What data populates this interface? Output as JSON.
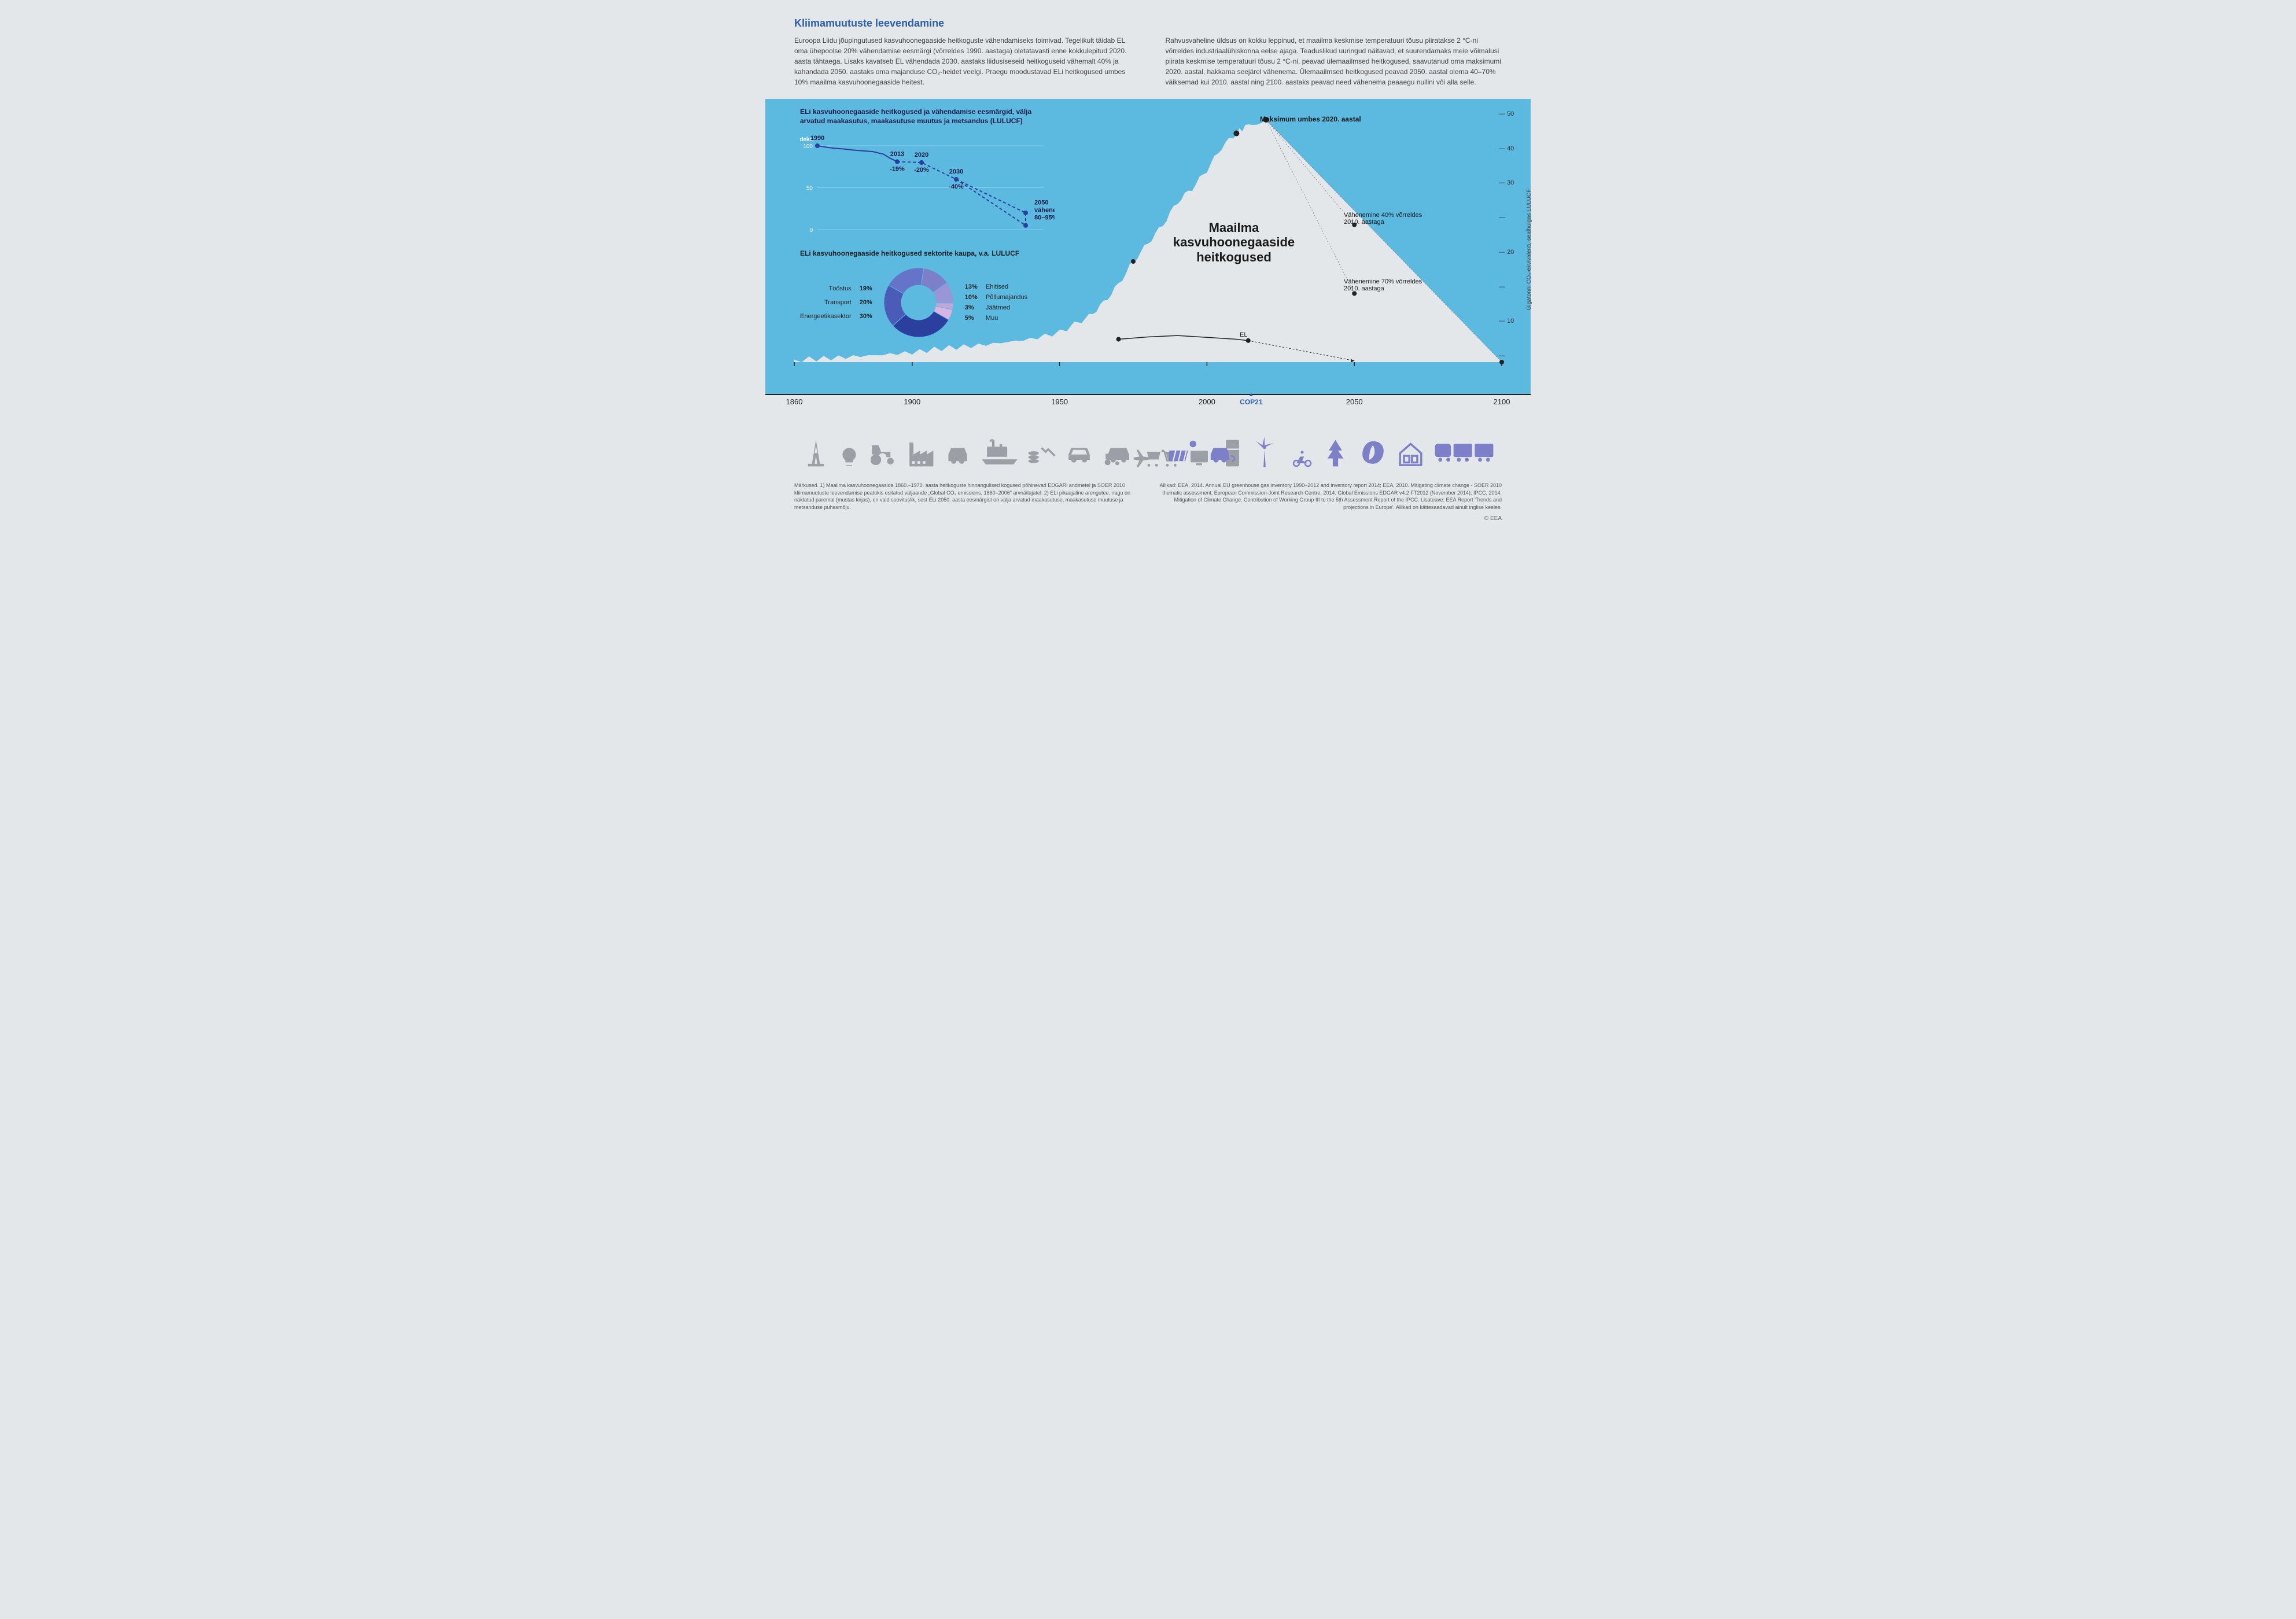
{
  "title": "Kliimamuutuste leevendamine",
  "intro_left": "Euroopa Liidu jõupingutused kasvuhoonegaaside heitkoguste vähendamiseks toimivad. Tegelikult täidab EL oma ühepoolse 20% vähendamise eesmärgi (võrreldes 1990. aastaga) oletatavasti enne kokkulepitud 2020. aasta tähtaega. Lisaks kavatseb EL vähendada 2030. aastaks liidusiseseid heitkoguseid vähemalt 40% ja kahandada 2050. aastaks oma majanduse CO₂-heidet veelgi. Praegu moodustavad ELi heitkogused umbes 10% maailma kasvuhoonegaaside heitest.",
  "intro_right": "Rahvusvaheline üldsus on kokku leppinud, et maailma keskmise temperatuuri tõusu piiratakse 2 °C-ni võrreldes industriaalühiskonna eelse ajaga. Teaduslikud uuringud näitavad, et suurendamaks meie võimalusi piirata keskmise temperatuuri tõusu 2 °C-ni, peavad ülemaailmsed heitkogused, saavutanud oma maksimumi 2020. aastal, hakkama seejärel vähenema. Ülemaailmsed heitkogused peavad 2050. aastal olema 40–70% väiksemad kui 2010. aastal ning 2100. aastaks peavad need vähenema peaaegu nullini või alla selle.",
  "eu_chart": {
    "title": "ELi kasvuhoonegaaside heitkogused ja vähendamise eesmärgid, välja arvatud maakasutus, maakasutuse muutus ja metsandus (LULUCF)",
    "indeks_label": "Indeks",
    "ylim": [
      0,
      100
    ],
    "yticks": [
      0,
      50,
      100
    ],
    "grid_color": "#8fd0ea",
    "line_color": "#2b3f9e",
    "points": [
      {
        "year": 1990,
        "value": 100,
        "label": "1990"
      },
      {
        "year": 2013,
        "value": 81,
        "label": "2013",
        "sublabel": "-19%"
      },
      {
        "year": 2020,
        "value": 80,
        "label": "2020",
        "sublabel": "-20%",
        "dashed_from": true
      },
      {
        "year": 2030,
        "value": 60,
        "label": "2030",
        "sublabel": "-40%"
      },
      {
        "year": 2050,
        "value_range": [
          5,
          20
        ],
        "label": "2050",
        "sublabel": "vähenemine 80–95%"
      }
    ]
  },
  "donut": {
    "title": "ELi kasvuhoonegaaside heitkogused sektorite kaupa, v.a. LULUCF",
    "inner_color": "#5cb9e0",
    "sectors": [
      {
        "label": "Energeetikasektor",
        "pct": 30,
        "color": "#2b3f9e"
      },
      {
        "label": "Transport",
        "pct": 20,
        "color": "#4a5cb8"
      },
      {
        "label": "Tööstus",
        "pct": 19,
        "color": "#6574c9"
      },
      {
        "label": "Ehitised",
        "pct": 13,
        "color": "#7d7fc9"
      },
      {
        "label": "Põllumajandus",
        "pct": 10,
        "color": "#9896d6"
      },
      {
        "label": "Jäätmed",
        "pct": 3,
        "color": "#c4a5d8"
      },
      {
        "label": "Muu",
        "pct": 5,
        "color": "#d8b5e0"
      }
    ]
  },
  "world_chart": {
    "title": "Maailma kasvuhoonegaaside heitkogused",
    "background": "#5cb9e0",
    "mountain_fill": "#e4e7ea",
    "xlim": [
      1860,
      2100
    ],
    "ylim": [
      0,
      55
    ],
    "yticks": [
      10,
      20,
      30,
      40,
      50
    ],
    "axis_label": "Gigatonni CO₂-ekvivalenti, sealhulgas LULUCF",
    "series_world": [
      {
        "x": 1860,
        "y": 0.5
      },
      {
        "x": 1870,
        "y": 0.8
      },
      {
        "x": 1880,
        "y": 1.2
      },
      {
        "x": 1890,
        "y": 1.6
      },
      {
        "x": 1900,
        "y": 2.1
      },
      {
        "x": 1910,
        "y": 3.0
      },
      {
        "x": 1920,
        "y": 3.5
      },
      {
        "x": 1930,
        "y": 4.2
      },
      {
        "x": 1940,
        "y": 5.0
      },
      {
        "x": 1950,
        "y": 6.5
      },
      {
        "x": 1960,
        "y": 10
      },
      {
        "x": 1965,
        "y": 13
      },
      {
        "x": 1970,
        "y": 17
      },
      {
        "x": 1975,
        "y": 22
      },
      {
        "x": 1980,
        "y": 26
      },
      {
        "x": 1985,
        "y": 30
      },
      {
        "x": 1990,
        "y": 35
      },
      {
        "x": 1995,
        "y": 38
      },
      {
        "x": 2000,
        "y": 42
      },
      {
        "x": 2005,
        "y": 47
      },
      {
        "x": 2010,
        "y": 50
      },
      {
        "x": 2014,
        "y": 52
      },
      {
        "x": 2020,
        "y": 53
      }
    ],
    "series_eu": [
      {
        "x": 1970,
        "y": 5.0
      },
      {
        "x": 1980,
        "y": 5.5
      },
      {
        "x": 1990,
        "y": 5.8
      },
      {
        "x": 2000,
        "y": 5.4
      },
      {
        "x": 2010,
        "y": 5.0
      },
      {
        "x": 2014,
        "y": 4.7
      }
    ],
    "eu_label": "EL",
    "projections": [
      {
        "target_x": 2050,
        "target_y": 30,
        "label": "Vähenemine 40% võrreldes 2010. aastaga"
      },
      {
        "target_x": 2050,
        "target_y": 15,
        "label": "Vähenemine 70% võrreldes 2010. aastaga"
      },
      {
        "target_x": 2100,
        "target_y": 0
      }
    ],
    "peak_label": "Maksimum umbes 2020. aastal",
    "cop21_label": "COP21",
    "cop21_x": 2015
  },
  "year_axis": [
    1860,
    1900,
    1950,
    2000,
    2050,
    2100
  ],
  "footnote_left": "Märkused. 1) Maailma kasvuhoonegaaside 1860.–1970. aasta heitkoguste hinnangulised kogused põhinevad EDGARi andmetel ja SOER 2010 kliimamuutuste leevendamise peatükis esitatud väljaande „Global CO₂ emissions, 1860–2006\" arvnäitajatel. 2) ELi pikaajaline arengutee, nagu on näidatud paremal (mustas kirjas), on vaid soovituslik, sest ELi 2050. aasta eesmärgist on välja arvatud maakasutuse, maakasutuse muutuse ja metsanduse puhasmõju.",
  "footnote_right": "Allikad: EEA, 2014. Annual EU greenhouse gas inventory 1990–2012 and inventory report 2014; EEA, 2010. Mitigating climate change - SOER 2010 thematic assessment; European Commission-Joint Research Centre, 2014. Global Emissions EDGAR v4.2 FT2012 (November 2014); IPCC, 2014. Mitigation of Climate Change. Contribution of Working Group III to the 5th Assessment Report of the IPCC. Lisateave: EEA Report 'Trends and projections in Europe'. Allikad on kättesaadavad ainult inglise keeles.",
  "copyright": "© EEA"
}
